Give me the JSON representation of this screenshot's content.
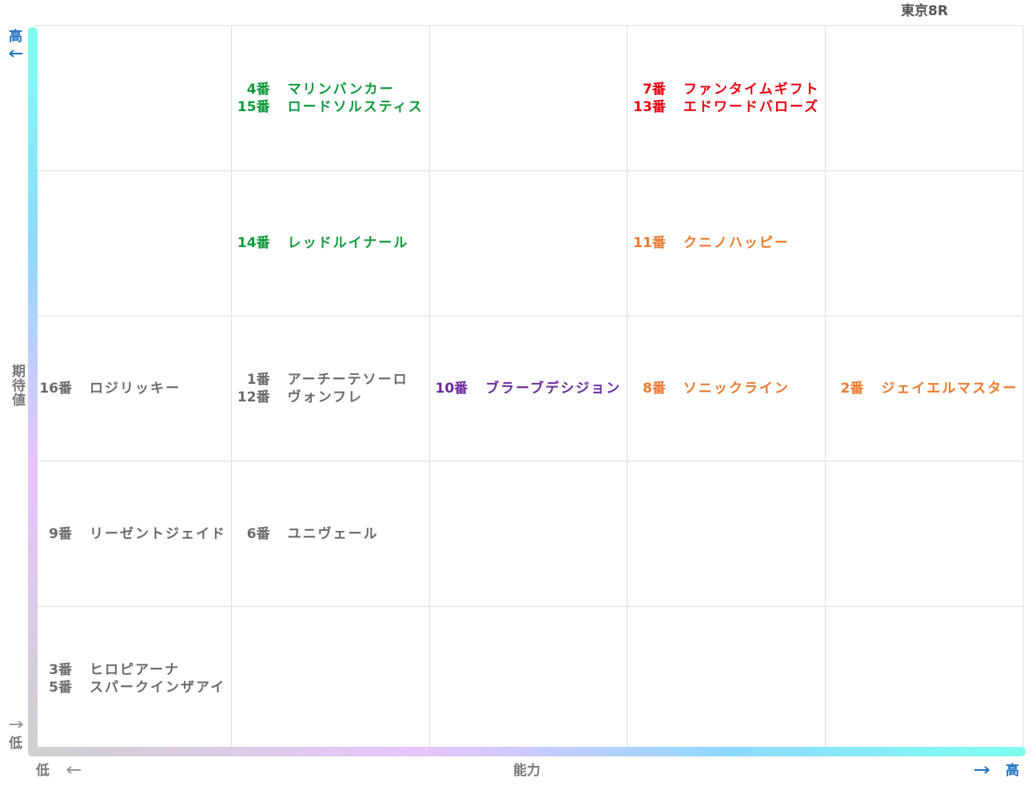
{
  "title": "東京8R",
  "y_axis": {
    "label": "期待値",
    "high": "高",
    "low": "低"
  },
  "x_axis": {
    "label": "能力",
    "high": "高",
    "low": "低"
  },
  "grid": {
    "rows": [
      [
        {
          "horses": []
        },
        {
          "color": "#0f9a3c",
          "horses": [
            {
              "number": "4番",
              "name": "マリンバンカー"
            },
            {
              "number": "15番",
              "name": "ロードソルスティス"
            }
          ]
        },
        {
          "horses": []
        },
        {
          "color": "#e8000f",
          "horses": [
            {
              "number": "7番",
              "name": "ファンタイムギフト"
            },
            {
              "number": "13番",
              "name": "エドワードバローズ"
            }
          ]
        },
        {
          "horses": []
        }
      ],
      [
        {
          "horses": []
        },
        {
          "color": "#0f9a3c",
          "horses": [
            {
              "number": "14番",
              "name": "レッドルイナール"
            }
          ]
        },
        {
          "horses": []
        },
        {
          "color": "#ec7a2c",
          "horses": [
            {
              "number": "11番",
              "name": "クニノハッピー"
            }
          ]
        },
        {
          "horses": []
        }
      ],
      [
        {
          "color": "#6b6b6b",
          "horses": [
            {
              "number": "16番",
              "name": "ロジリッキー"
            }
          ]
        },
        {
          "color": "#6b6b6b",
          "horses": [
            {
              "number": "1番",
              "name": "アーチーテソーロ"
            },
            {
              "number": "12番",
              "name": "ヴォンフレ"
            }
          ]
        },
        {
          "color": "#6a2a9c",
          "horses": [
            {
              "number": "10番",
              "name": "ブラーブデシジョン"
            }
          ]
        },
        {
          "color": "#ec7a2c",
          "horses": [
            {
              "number": "8番",
              "name": "ソニックライン"
            }
          ]
        },
        {
          "color": "#ec7a2c",
          "horses": [
            {
              "number": "2番",
              "name": "ジェイエルマスター"
            }
          ]
        }
      ],
      [
        {
          "color": "#6b6b6b",
          "horses": [
            {
              "number": "9番",
              "name": "リーゼントジェイド"
            }
          ]
        },
        {
          "color": "#6b6b6b",
          "horses": [
            {
              "number": "6番",
              "name": "ユニヴェール"
            }
          ]
        },
        {
          "horses": []
        },
        {
          "horses": []
        },
        {
          "horses": []
        }
      ],
      [
        {
          "color": "#6b6b6b",
          "horses": [
            {
              "number": "3番",
              "name": "ヒロピアーナ"
            },
            {
              "number": "5番",
              "name": "スパークインザアイ"
            }
          ]
        },
        {
          "horses": []
        },
        {
          "horses": []
        },
        {
          "horses": []
        },
        {
          "horses": []
        }
      ]
    ]
  }
}
